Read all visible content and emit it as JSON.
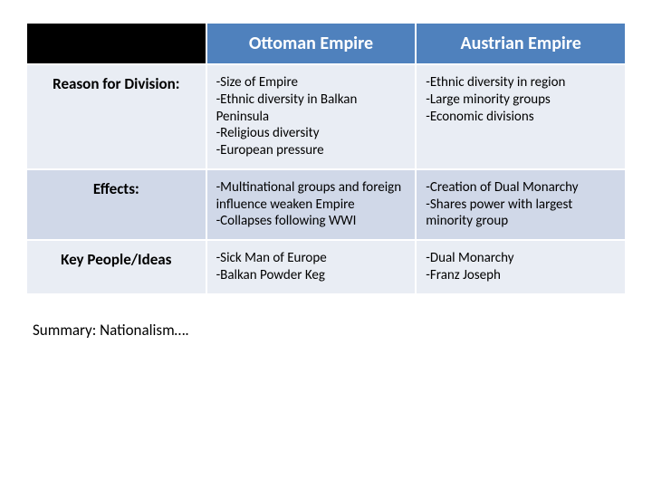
{
  "table": {
    "header_bg": "#4f81bd",
    "header_blank_bg": "#000000",
    "row_odd_bg": "#e9edf4",
    "row_even_bg": "#d0d8e8",
    "columns": [
      "",
      "Ottoman Empire",
      "Austrian Empire"
    ],
    "rows": [
      {
        "label": "Reason for Division:",
        "ottoman": "-Size of Empire\n-Ethnic diversity in Balkan Peninsula\n-Religious diversity\n-European pressure",
        "austrian": "-Ethnic diversity in region\n-Large minority groups\n-Economic divisions"
      },
      {
        "label": "Effects:",
        "ottoman": "-Multinational groups and foreign influence weaken Empire\n-Collapses following WWI",
        "austrian": "-Creation of Dual Monarchy\n-Shares power with largest minority group"
      },
      {
        "label": "Key People/Ideas",
        "ottoman": "-Sick Man of Europe\n-Balkan Powder Keg",
        "austrian": "-Dual Monarchy\n-Franz Joseph"
      }
    ]
  },
  "summary": "Summary: Nationalism…."
}
